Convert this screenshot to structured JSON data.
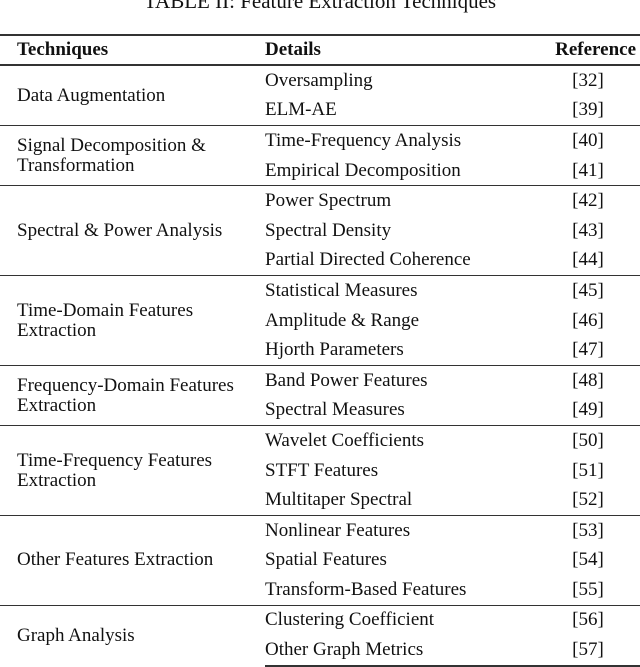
{
  "title": "TABLE II: Feature Extraction Techniques",
  "headers": [
    "Techniques",
    "Details",
    "Reference"
  ],
  "groups": [
    {
      "technique": "Data Augmentation",
      "rows": [
        [
          "Oversampling",
          "[32]"
        ],
        [
          "ELM-AE",
          "[39]"
        ]
      ]
    },
    {
      "technique": "Signal Decomposition & Transformation",
      "rows": [
        [
          "Time-Frequency Analysis",
          "[40]"
        ],
        [
          "Empirical Decomposition",
          "[41]"
        ]
      ]
    },
    {
      "technique": "Spectral & Power Analysis",
      "rows": [
        [
          "Power Spectrum",
          "[42]"
        ],
        [
          "Spectral Density",
          "[43]"
        ],
        [
          "Partial Directed Coherence",
          "[44]"
        ]
      ]
    },
    {
      "technique": "Time-Domain Features Extraction",
      "rows": [
        [
          "Statistical Measures",
          "[45]"
        ],
        [
          "Amplitude & Range",
          "[46]"
        ],
        [
          "Hjorth Parameters",
          "[47]"
        ]
      ]
    },
    {
      "technique": "Frequency-Domain Features Extraction",
      "rows": [
        [
          "Band Power Features",
          "[48]"
        ],
        [
          "Spectral Measures",
          "[49]"
        ]
      ]
    },
    {
      "technique": "Time-Frequency Features Extraction",
      "rows": [
        [
          "Wavelet Coefficients",
          "[50]"
        ],
        [
          "STFT Features",
          "[51]"
        ],
        [
          "Multitaper Spectral",
          "[52]"
        ]
      ]
    },
    {
      "technique": "Other Features Extraction",
      "rows": [
        [
          "Nonlinear Features",
          "[53]"
        ],
        [
          "Spatial Features",
          "[54]"
        ],
        [
          "Transform-Based Features",
          "[55]"
        ]
      ]
    },
    {
      "technique": "Graph Analysis",
      "rows": [
        [
          "Clustering Coefficient",
          "[56]"
        ],
        [
          "Other Graph Metrics",
          "[57]"
        ]
      ]
    }
  ]
}
